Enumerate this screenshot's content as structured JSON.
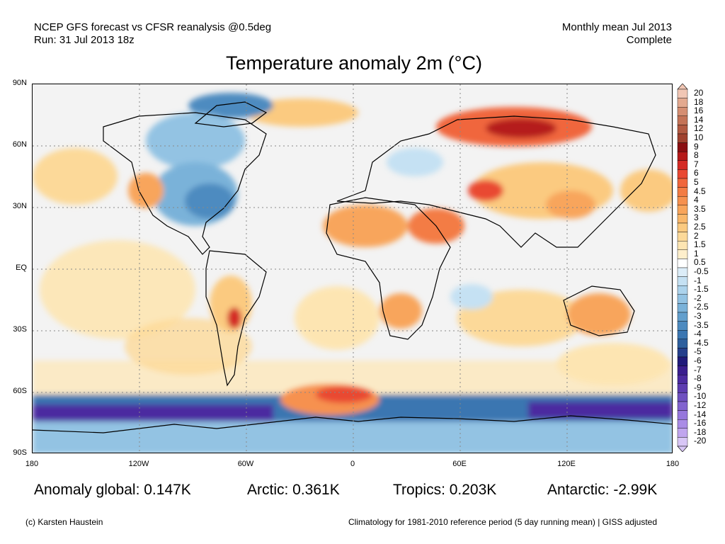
{
  "header": {
    "line1_left": "NCEP GFS forecast vs CFSR reanalysis @0.5deg",
    "line2_left": "Run: 31 Jul 2013 18z",
    "line1_right": "Monthly mean Jul 2013",
    "line2_right": "Complete"
  },
  "title": "Temperature anomaly 2m (°C)",
  "axes": {
    "lat_labels": [
      "90N",
      "60N",
      "30N",
      "EQ",
      "30S",
      "60S",
      "90S"
    ],
    "lon_labels": [
      "180",
      "120W",
      "60W",
      "0",
      "60E",
      "120E",
      "180"
    ]
  },
  "colorbar": {
    "labels": [
      "20",
      "18",
      "16",
      "14",
      "12",
      "10",
      "9",
      "8",
      "7",
      "6",
      "5",
      "4.5",
      "4",
      "3.5",
      "3",
      "2.5",
      "2",
      "1.5",
      "1",
      "0.5",
      "-0.5",
      "-1",
      "-1.5",
      "-2",
      "-2.5",
      "-3",
      "-3.5",
      "-4",
      "-4.5",
      "-5",
      "-6",
      "-7",
      "-8",
      "-9",
      "-10",
      "-12",
      "-14",
      "-16",
      "-18",
      "-20"
    ],
    "colors": [
      "#f1c6b4",
      "#e3a98f",
      "#d58e72",
      "#c47357",
      "#b25a42",
      "#a0422f",
      "#8a0f12",
      "#b51a1a",
      "#d42b25",
      "#e94832",
      "#f0663c",
      "#f37c44",
      "#f6914f",
      "#f8a55b",
      "#f9b86b",
      "#fbca80",
      "#fcd999",
      "#fde5b2",
      "#feefcc",
      "#ffffff",
      "#dcedf8",
      "#c5e1f3",
      "#acd3ec",
      "#93c3e3",
      "#7ab2d9",
      "#629fcd",
      "#4d8bc0",
      "#3b76b1",
      "#2d5f9e",
      "#243f8c",
      "#201a7a",
      "#3a1e8e",
      "#4c2ba0",
      "#5d3cb0",
      "#6f50c0",
      "#8263cf",
      "#9677dc",
      "#aa8ce6",
      "#c0a5ee",
      "#d8c6f6"
    ]
  },
  "stats": {
    "global": "Anomaly global: 0.147K",
    "arctic": "Arctic: 0.361K",
    "tropics": "Tropics: 0.203K",
    "antarctic": "Antarctic: -2.99K"
  },
  "footer": {
    "left": "(c) Karsten Haustein",
    "right": "Climatology for 1981-2010 reference period (5 day running mean) | GISS adjusted"
  }
}
